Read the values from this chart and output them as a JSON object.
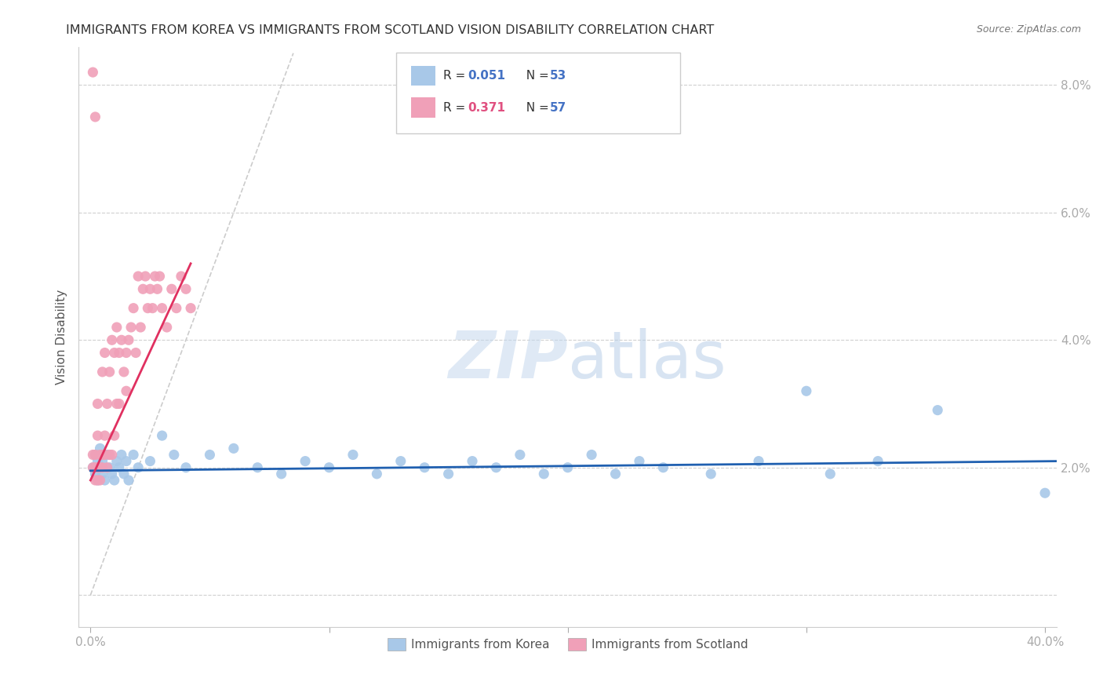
{
  "title": "IMMIGRANTS FROM KOREA VS IMMIGRANTS FROM SCOTLAND VISION DISABILITY CORRELATION CHART",
  "source": "Source: ZipAtlas.com",
  "ylabel": "Vision Disability",
  "xlim": [
    -0.005,
    0.405
  ],
  "ylim": [
    -0.005,
    0.086
  ],
  "xticks": [
    0.0,
    0.1,
    0.2,
    0.3,
    0.4
  ],
  "xtick_labels": [
    "0.0%",
    "",
    "",
    "",
    "40.0%"
  ],
  "yticks": [
    0.0,
    0.02,
    0.04,
    0.06,
    0.08
  ],
  "ytick_labels": [
    "",
    "2.0%",
    "4.0%",
    "6.0%",
    "8.0%"
  ],
  "korea_R": 0.051,
  "korea_N": 53,
  "scotland_R": 0.371,
  "scotland_N": 57,
  "korea_color": "#a8c8e8",
  "scotland_color": "#f0a0b8",
  "korea_line_color": "#2060b0",
  "scotland_line_color": "#e03060",
  "diagonal_color": "#cccccc",
  "watermark_zip": "ZIP",
  "watermark_atlas": "atlas",
  "legend_korea_R_color": "#4472c4",
  "legend_scotland_R_color": "#e05080",
  "legend_N_color": "#4472c4",
  "korea_x": [
    0.001,
    0.002,
    0.002,
    0.003,
    0.003,
    0.004,
    0.004,
    0.005,
    0.005,
    0.006,
    0.007,
    0.008,
    0.009,
    0.01,
    0.011,
    0.012,
    0.013,
    0.014,
    0.015,
    0.016,
    0.018,
    0.02,
    0.025,
    0.03,
    0.035,
    0.04,
    0.05,
    0.06,
    0.07,
    0.08,
    0.09,
    0.1,
    0.11,
    0.12,
    0.13,
    0.14,
    0.15,
    0.16,
    0.17,
    0.18,
    0.19,
    0.2,
    0.21,
    0.22,
    0.23,
    0.24,
    0.26,
    0.28,
    0.3,
    0.31,
    0.33,
    0.355,
    0.4
  ],
  "korea_y": [
    0.02,
    0.022,
    0.019,
    0.021,
    0.018,
    0.02,
    0.023,
    0.019,
    0.021,
    0.018,
    0.022,
    0.02,
    0.019,
    0.018,
    0.021,
    0.02,
    0.022,
    0.019,
    0.021,
    0.018,
    0.022,
    0.02,
    0.021,
    0.025,
    0.022,
    0.02,
    0.022,
    0.023,
    0.02,
    0.019,
    0.021,
    0.02,
    0.022,
    0.019,
    0.021,
    0.02,
    0.019,
    0.021,
    0.02,
    0.022,
    0.019,
    0.02,
    0.022,
    0.019,
    0.021,
    0.02,
    0.019,
    0.021,
    0.032,
    0.019,
    0.021,
    0.029,
    0.016
  ],
  "scotland_x": [
    0.001,
    0.001,
    0.001,
    0.002,
    0.002,
    0.002,
    0.002,
    0.003,
    0.003,
    0.003,
    0.003,
    0.004,
    0.004,
    0.004,
    0.005,
    0.005,
    0.005,
    0.006,
    0.006,
    0.006,
    0.007,
    0.007,
    0.008,
    0.008,
    0.009,
    0.009,
    0.01,
    0.01,
    0.011,
    0.011,
    0.012,
    0.012,
    0.013,
    0.014,
    0.015,
    0.015,
    0.016,
    0.017,
    0.018,
    0.019,
    0.02,
    0.021,
    0.022,
    0.023,
    0.024,
    0.025,
    0.026,
    0.027,
    0.028,
    0.029,
    0.03,
    0.032,
    0.034,
    0.036,
    0.038,
    0.04,
    0.042
  ],
  "scotland_y": [
    0.082,
    0.02,
    0.022,
    0.075,
    0.022,
    0.02,
    0.018,
    0.03,
    0.025,
    0.02,
    0.018,
    0.022,
    0.02,
    0.018,
    0.035,
    0.022,
    0.02,
    0.038,
    0.025,
    0.022,
    0.03,
    0.02,
    0.035,
    0.022,
    0.04,
    0.022,
    0.038,
    0.025,
    0.042,
    0.03,
    0.038,
    0.03,
    0.04,
    0.035,
    0.038,
    0.032,
    0.04,
    0.042,
    0.045,
    0.038,
    0.05,
    0.042,
    0.048,
    0.05,
    0.045,
    0.048,
    0.045,
    0.05,
    0.048,
    0.05,
    0.045,
    0.042,
    0.048,
    0.045,
    0.05,
    0.048,
    0.045
  ],
  "korea_line_x": [
    0.0,
    0.405
  ],
  "korea_line_y": [
    0.0195,
    0.021
  ],
  "scotland_line_x": [
    0.0,
    0.042
  ],
  "scotland_line_y": [
    0.018,
    0.052
  ]
}
